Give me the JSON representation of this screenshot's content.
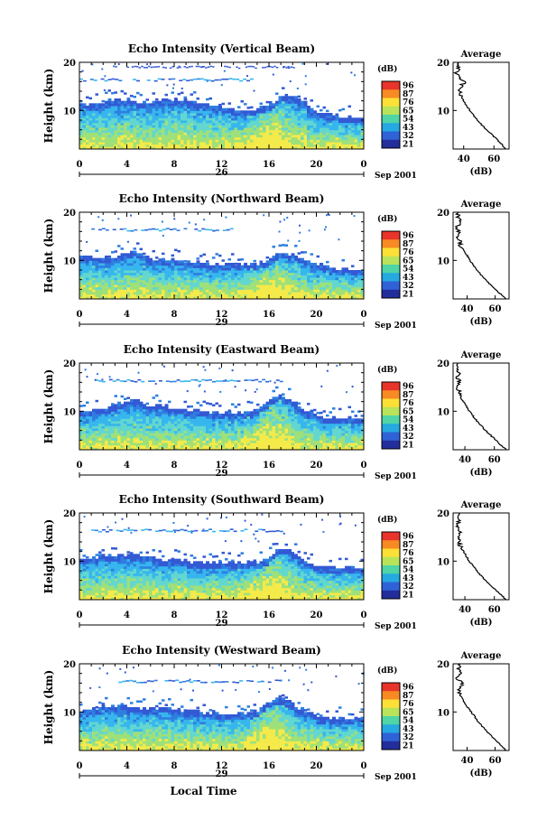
{
  "figure": {
    "x_axis_title": "Local Time",
    "date_label": "Sep 2001",
    "colorbar_unit": "(dB)",
    "colorbar_ticks": [
      "96",
      "87",
      "76",
      "65",
      "54",
      "43",
      "32",
      "21"
    ],
    "colorbar_colors": [
      "#e8342a",
      "#f78a22",
      "#fde036",
      "#b9e35a",
      "#4fd5a6",
      "#24a9e1",
      "#2f62d6",
      "#222e9b"
    ],
    "echo_colors": [
      "#f4ea4a",
      "#9ee07a",
      "#62d7cf",
      "#37b6ee",
      "#2e7fe0",
      "#3359d4"
    ]
  },
  "panels": [
    {
      "title": "Echo Intensity (Vertical Beam)",
      "ylabel": "Height (km)",
      "yticks": [
        "20",
        "10"
      ],
      "xticks": [
        "0",
        "4",
        "8",
        "12",
        "16",
        "20",
        "0"
      ],
      "day": "26",
      "avg_title": "Average",
      "avg_xlabel": "(dB)",
      "avg_yticks": [
        "20",
        "10"
      ],
      "avg_xticks": [
        "40",
        "60"
      ]
    },
    {
      "title": "Echo Intensity (Northward Beam)",
      "ylabel": "Height (km)",
      "yticks": [
        "20",
        "10"
      ],
      "xticks": [
        "0",
        "4",
        "8",
        "12",
        "16",
        "20",
        "0"
      ],
      "day": "29",
      "avg_title": "Average",
      "avg_xlabel": "(dB)",
      "avg_yticks": [
        "20",
        "10"
      ],
      "avg_xticks": [
        "40",
        "60"
      ]
    },
    {
      "title": "Echo Intensity (Eastward Beam)",
      "ylabel": "Height (km)",
      "yticks": [
        "20",
        "10"
      ],
      "xticks": [
        "0",
        "4",
        "8",
        "12",
        "16",
        "20",
        "0"
      ],
      "day": "29",
      "avg_title": "Average",
      "avg_xlabel": "(dB)",
      "avg_yticks": [
        "20",
        "10"
      ],
      "avg_xticks": [
        "40",
        "60"
      ]
    },
    {
      "title": "Echo Intensity (Southward Beam)",
      "ylabel": "Height (km)",
      "yticks": [
        "20",
        "10"
      ],
      "xticks": [
        "0",
        "4",
        "8",
        "12",
        "16",
        "20",
        "0"
      ],
      "day": "29",
      "avg_title": "Average",
      "avg_xlabel": "(dB)",
      "avg_yticks": [
        "20",
        "10"
      ],
      "avg_xticks": [
        "40",
        "60"
      ]
    },
    {
      "title": "Echo Intensity (Westward Beam)",
      "ylabel": "Height (km)",
      "yticks": [
        "20",
        "10"
      ],
      "xticks": [
        "0",
        "4",
        "8",
        "12",
        "16",
        "20",
        "0"
      ],
      "day": "29",
      "avg_title": "Average",
      "avg_xlabel": "(dB)",
      "avg_yticks": [
        "20",
        "10"
      ],
      "avg_xticks": [
        "40",
        "60"
      ]
    }
  ],
  "chart_data": [
    {
      "type": "heatmap",
      "title": "Echo Intensity (Vertical Beam)",
      "xlabel": "Local Time",
      "ylabel": "Height (km)",
      "xlim": [
        0,
        24
      ],
      "ylim": [
        2,
        20
      ],
      "colorbar_label": "(dB)",
      "colorbar_range": [
        21,
        96
      ],
      "echo_top_km": [
        11,
        11,
        11.5,
        12,
        12,
        11.5,
        11.5,
        12,
        12,
        12,
        11,
        11,
        10.5,
        10,
        10,
        10,
        11,
        12.5,
        13,
        11.5,
        9.5,
        9,
        8.5,
        8.5,
        8.5
      ],
      "profile": {
        "type": "line",
        "title": "Average",
        "xlabel": "(dB)",
        "xlim": [
          33,
          70
        ],
        "ylim": [
          2,
          20
        ],
        "heights_km": [
          2,
          4,
          6,
          8,
          10,
          12,
          13,
          14,
          15,
          16,
          17,
          18,
          19,
          20
        ],
        "values_db": [
          68,
          62,
          55,
          49,
          44,
          40,
          38,
          37,
          38,
          41,
          36,
          35,
          37,
          36
        ]
      }
    },
    {
      "type": "heatmap",
      "title": "Echo Intensity (Northward Beam)",
      "xlabel": "Local Time",
      "ylabel": "Height (km)",
      "xlim": [
        0,
        24
      ],
      "ylim": [
        2,
        20
      ],
      "colorbar_label": "(dB)",
      "colorbar_range": [
        21,
        96
      ],
      "echo_top_km": [
        10.5,
        10.5,
        10.5,
        10.5,
        11.5,
        11.5,
        10,
        10,
        10,
        9.5,
        9.5,
        9,
        9,
        9,
        9,
        9,
        10,
        11.5,
        11,
        10,
        9,
        8.5,
        8,
        8,
        8
      ],
      "profile": {
        "type": "line",
        "title": "Average",
        "xlabel": "(dB)",
        "xlim": [
          30,
          70
        ],
        "ylim": [
          2,
          20
        ],
        "heights_km": [
          2,
          4,
          6,
          8,
          10,
          12,
          13,
          14,
          15,
          16,
          17,
          18,
          19,
          20
        ],
        "values_db": [
          68,
          60,
          53,
          47,
          42,
          38,
          35,
          35,
          33,
          34,
          33,
          35,
          33,
          34
        ]
      }
    },
    {
      "type": "heatmap",
      "title": "Echo Intensity (Eastward Beam)",
      "xlabel": "Local Time",
      "ylabel": "Height (km)",
      "xlim": [
        0,
        24
      ],
      "ylim": [
        2,
        20
      ],
      "colorbar_label": "(dB)",
      "colorbar_range": [
        21,
        96
      ],
      "echo_top_km": [
        9.5,
        10,
        10.5,
        11,
        12,
        12,
        11,
        11,
        10.5,
        10,
        10,
        9.5,
        9.5,
        9.5,
        9.5,
        10,
        12,
        13,
        12,
        10,
        9,
        8.5,
        8.5,
        8.5,
        8.5
      ],
      "profile": {
        "type": "line",
        "title": "Average",
        "xlabel": "(dB)",
        "xlim": [
          32,
          70
        ],
        "ylim": [
          2,
          20
        ],
        "heights_km": [
          2,
          4,
          6,
          8,
          10,
          12,
          13,
          14,
          15,
          16,
          17,
          18,
          19,
          20
        ],
        "values_db": [
          68,
          61,
          54,
          48,
          43,
          39,
          37,
          36,
          35,
          37,
          34,
          36,
          35,
          35
        ]
      }
    },
    {
      "type": "heatmap",
      "title": "Echo Intensity (Southward Beam)",
      "xlabel": "Local Time",
      "ylabel": "Height (km)",
      "xlim": [
        0,
        24
      ],
      "ylim": [
        2,
        20
      ],
      "colorbar_label": "(dB)",
      "colorbar_range": [
        21,
        96
      ],
      "echo_top_km": [
        10,
        10.5,
        11,
        11,
        11,
        11,
        10.5,
        10,
        10,
        10,
        9.5,
        9.5,
        9.5,
        9.5,
        9.5,
        9.5,
        10.5,
        12.5,
        11.5,
        10,
        9,
        8.5,
        8.5,
        8.5,
        8.5
      ],
      "profile": {
        "type": "line",
        "title": "Average",
        "xlabel": "(dB)",
        "xlim": [
          32,
          70
        ],
        "ylim": [
          2,
          20
        ],
        "heights_km": [
          2,
          4,
          6,
          8,
          10,
          12,
          13,
          14,
          15,
          16,
          17,
          18,
          19,
          20
        ],
        "values_db": [
          68,
          61,
          54,
          48,
          43,
          39,
          37,
          36,
          35,
          38,
          35,
          36,
          35,
          36
        ]
      }
    },
    {
      "type": "heatmap",
      "title": "Echo Intensity (Westward Beam)",
      "xlabel": "Local Time",
      "ylabel": "Height (km)",
      "xlim": [
        0,
        24
      ],
      "ylim": [
        2,
        20
      ],
      "colorbar_label": "(dB)",
      "colorbar_range": [
        21,
        96
      ],
      "echo_top_km": [
        10,
        10.5,
        11,
        11,
        11,
        10.5,
        10.5,
        11,
        10.5,
        10,
        10,
        9.5,
        9.5,
        9.5,
        9.5,
        10,
        12,
        13,
        11.5,
        10,
        9,
        8.5,
        8.5,
        8.5,
        8.5
      ],
      "profile": {
        "type": "line",
        "title": "Average",
        "xlabel": "(dB)",
        "xlim": [
          30,
          70
        ],
        "ylim": [
          2,
          20
        ],
        "heights_km": [
          2,
          4,
          6,
          8,
          10,
          12,
          13,
          14,
          15,
          16,
          17,
          18,
          19,
          20
        ],
        "values_db": [
          68,
          61,
          54,
          48,
          43,
          38,
          36,
          34,
          35,
          37,
          33,
          35,
          34,
          35
        ]
      }
    }
  ]
}
